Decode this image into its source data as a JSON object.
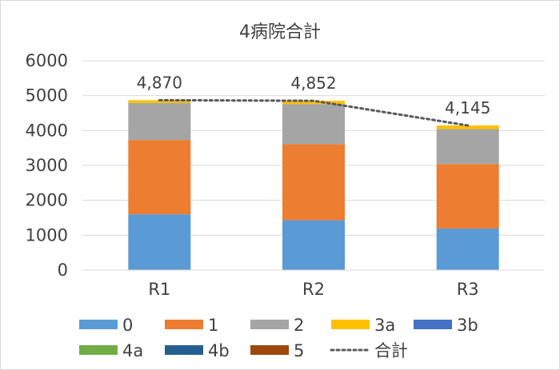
{
  "chart_data": {
    "type": "bar",
    "stacked": true,
    "title": "4病院合計",
    "categories": [
      "R1",
      "R2",
      "R3"
    ],
    "series": [
      {
        "name": "0",
        "color": "#5B9BD5",
        "values": [
          1600,
          1430,
          1190
        ]
      },
      {
        "name": "1",
        "color": "#ED7D31",
        "values": [
          2130,
          2180,
          1850
        ]
      },
      {
        "name": "2",
        "color": "#A5A5A5",
        "values": [
          1060,
          1150,
          1000
        ]
      },
      {
        "name": "3a",
        "color": "#FFC000",
        "values": [
          80,
          92,
          105
        ]
      },
      {
        "name": "3b",
        "color": "#4472C4",
        "values": [
          0,
          0,
          0
        ]
      },
      {
        "name": "4a",
        "color": "#70AD47",
        "values": [
          0,
          0,
          0
        ]
      },
      {
        "name": "4b",
        "color": "#255E91",
        "values": [
          0,
          0,
          0
        ]
      },
      {
        "name": "5",
        "color": "#9E480E",
        "values": [
          0,
          0,
          0
        ]
      }
    ],
    "total": {
      "name": "合計",
      "color": "#595959",
      "style": "dotted",
      "values": [
        4870,
        4852,
        4145
      ],
      "labels": [
        "4,870",
        "4,852",
        "4,145"
      ]
    },
    "ylim": [
      0,
      6000
    ],
    "yticks": [
      "0",
      "1000",
      "2000",
      "3000",
      "4000",
      "5000",
      "6000"
    ],
    "xlabel": "",
    "ylabel": "",
    "grid": true,
    "legend": "bottom"
  }
}
